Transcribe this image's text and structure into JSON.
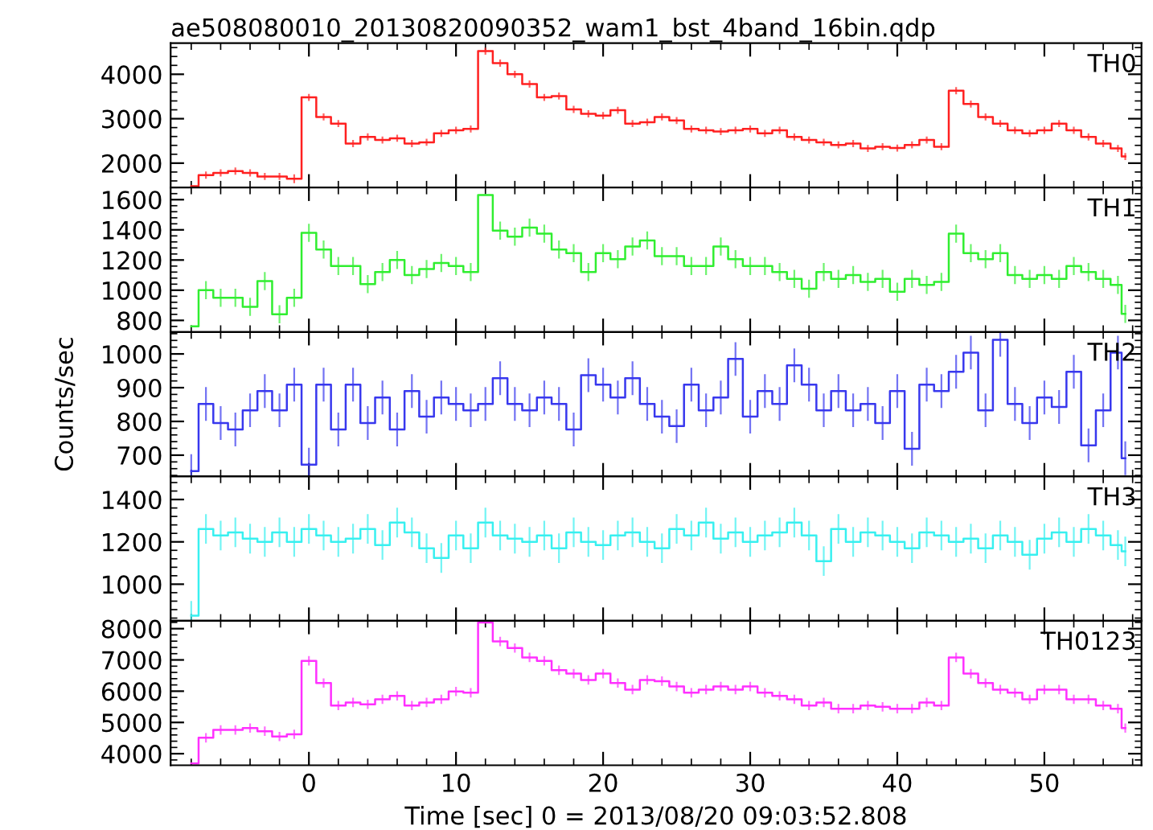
{
  "chart_data": [
    {
      "type": "step",
      "title": "ae508080010_20130820090352_wam1_bst_4band_16bin.qdp",
      "annotations": [
        "TH0"
      ],
      "tick_labels": "y",
      "x": [
        -8,
        -7,
        -6,
        -5,
        -4,
        -3,
        -2,
        -1,
        0,
        1,
        2,
        3,
        4,
        5,
        6,
        7,
        8,
        9,
        10,
        11,
        12,
        13,
        14,
        15,
        16,
        17,
        18,
        19,
        20,
        21,
        22,
        23,
        24,
        25,
        26,
        27,
        28,
        29,
        30,
        31,
        32,
        33,
        34,
        35,
        36,
        37,
        38,
        39,
        40,
        41,
        42,
        43,
        44,
        45,
        46,
        47,
        48,
        49,
        50,
        51,
        52,
        53,
        54,
        55,
        55.5
      ],
      "xlim": [
        -9.4,
        56.6
      ],
      "xticks": [
        0,
        10,
        20,
        30,
        40,
        50
      ],
      "ylim": [
        1450,
        4700
      ],
      "yticks": [
        2000,
        3000,
        4000
      ],
      "series": [
        {
          "color": "#ff2020",
          "values": [
            1480,
            1730,
            1780,
            1820,
            1780,
            1700,
            1700,
            1650,
            3480,
            3040,
            2890,
            2440,
            2590,
            2520,
            2560,
            2440,
            2470,
            2670,
            2740,
            2770,
            4520,
            4250,
            4000,
            3780,
            3480,
            3510,
            3210,
            3110,
            3070,
            3190,
            2890,
            2920,
            3040,
            2960,
            2770,
            2740,
            2710,
            2740,
            2770,
            2670,
            2740,
            2590,
            2520,
            2470,
            2410,
            2440,
            2330,
            2370,
            2340,
            2410,
            2520,
            2370,
            3630,
            3330,
            3040,
            2890,
            2740,
            2670,
            2740,
            2890,
            2740,
            2590,
            2440,
            2330,
            2150
          ],
          "errors": [
            null,
            80,
            80,
            80,
            80,
            80,
            80,
            100,
            80,
            80,
            80,
            80,
            80,
            80,
            80,
            80,
            80,
            80,
            80,
            80,
            80,
            80,
            80,
            80,
            80,
            80,
            80,
            80,
            80,
            80,
            80,
            80,
            80,
            80,
            80,
            80,
            80,
            80,
            80,
            80,
            80,
            80,
            80,
            80,
            80,
            80,
            80,
            80,
            80,
            80,
            80,
            80,
            80,
            80,
            80,
            80,
            80,
            80,
            80,
            80,
            80,
            80,
            80,
            80,
            80
          ]
        }
      ]
    },
    {
      "type": "step",
      "annotations": [
        "TH1"
      ],
      "tick_labels": "y",
      "x": [
        -8,
        -7,
        -6,
        -5,
        -4,
        -3,
        -2,
        -1,
        0,
        1,
        2,
        3,
        4,
        5,
        6,
        7,
        8,
        9,
        10,
        11,
        12,
        13,
        14,
        15,
        16,
        17,
        18,
        19,
        20,
        21,
        22,
        23,
        24,
        25,
        26,
        27,
        28,
        29,
        30,
        31,
        32,
        33,
        34,
        35,
        36,
        37,
        38,
        39,
        40,
        41,
        42,
        43,
        44,
        45,
        46,
        47,
        48,
        49,
        50,
        51,
        52,
        53,
        54,
        55,
        55.5
      ],
      "xlim": [
        -9.4,
        56.6
      ],
      "xticks": [
        0,
        10,
        20,
        30,
        40,
        50
      ],
      "ylim": [
        723,
        1680
      ],
      "yticks": [
        800,
        1000,
        1200,
        1400,
        1600
      ],
      "series": [
        {
          "color": "#30ee30",
          "values": [
            760,
            1000,
            950,
            950,
            890,
            1060,
            840,
            950,
            1380,
            1270,
            1160,
            1160,
            1040,
            1120,
            1200,
            1100,
            1140,
            1180,
            1160,
            1120,
            1630,
            1395,
            1355,
            1415,
            1375,
            1270,
            1245,
            1120,
            1245,
            1205,
            1290,
            1330,
            1225,
            1225,
            1160,
            1160,
            1290,
            1205,
            1160,
            1160,
            1120,
            1075,
            1010,
            1120,
            1075,
            1100,
            1055,
            1075,
            990,
            1075,
            1035,
            1055,
            1375,
            1245,
            1205,
            1245,
            1100,
            1075,
            1100,
            1075,
            1160,
            1120,
            1075,
            1035,
            843
          ],
          "errors": [
            null,
            60,
            60,
            60,
            60,
            60,
            60,
            60,
            60,
            60,
            60,
            60,
            60,
            60,
            60,
            60,
            60,
            60,
            60,
            60,
            null,
            60,
            60,
            60,
            60,
            60,
            60,
            60,
            60,
            60,
            60,
            60,
            60,
            60,
            60,
            60,
            60,
            60,
            60,
            60,
            60,
            60,
            60,
            60,
            60,
            60,
            60,
            60,
            60,
            60,
            60,
            60,
            60,
            60,
            60,
            60,
            60,
            60,
            60,
            60,
            60,
            60,
            60,
            60,
            60
          ]
        }
      ]
    },
    {
      "type": "step",
      "annotations": [
        "TH2"
      ],
      "ylabel": "Counts/sec",
      "tick_labels": "y",
      "x": [
        -8,
        -7,
        -6,
        -5,
        -4,
        -3,
        -2,
        -1,
        0,
        1,
        2,
        3,
        4,
        5,
        6,
        7,
        8,
        9,
        10,
        11,
        12,
        13,
        14,
        15,
        16,
        17,
        18,
        19,
        20,
        21,
        22,
        23,
        24,
        25,
        26,
        27,
        28,
        29,
        30,
        31,
        32,
        33,
        34,
        35,
        36,
        37,
        38,
        39,
        40,
        41,
        42,
        43,
        44,
        45,
        46,
        47,
        48,
        49,
        50,
        51,
        52,
        53,
        54,
        55,
        55.5
      ],
      "xlim": [
        -9.4,
        56.6
      ],
      "xticks": [
        0,
        10,
        20,
        30,
        40,
        50
      ],
      "ylim": [
        637,
        1065
      ],
      "yticks": [
        700,
        800,
        900,
        1000
      ],
      "series": [
        {
          "color": "#3838ee",
          "values": [
            653,
            852,
            795,
            776,
            833,
            890,
            833,
            909,
            672,
            909,
            776,
            909,
            795,
            871,
            776,
            890,
            814,
            871,
            852,
            833,
            852,
            928,
            852,
            833,
            871,
            852,
            776,
            937,
            909,
            871,
            928,
            852,
            814,
            786,
            909,
            833,
            871,
            985,
            814,
            890,
            852,
            966,
            909,
            833,
            890,
            833,
            852,
            795,
            890,
            719,
            909,
            890,
            947,
            1004,
            833,
            1042,
            852,
            795,
            871,
            843,
            947,
            729,
            833,
            1004,
            691
          ],
          "errors": [
            50,
            50,
            50,
            50,
            50,
            50,
            50,
            50,
            50,
            50,
            50,
            50,
            50,
            50,
            50,
            50,
            50,
            50,
            50,
            50,
            50,
            50,
            50,
            50,
            50,
            50,
            50,
            50,
            50,
            50,
            50,
            50,
            50,
            50,
            50,
            50,
            50,
            50,
            50,
            50,
            50,
            50,
            50,
            50,
            50,
            50,
            50,
            50,
            50,
            50,
            50,
            50,
            50,
            50,
            50,
            50,
            50,
            50,
            50,
            50,
            50,
            50,
            50,
            50,
            50
          ]
        }
      ]
    },
    {
      "type": "step",
      "annotations": [
        "TH3"
      ],
      "tick_labels": "y",
      "x": [
        -8,
        -7,
        -6,
        -5,
        -4,
        -3,
        -2,
        -1,
        0,
        1,
        2,
        3,
        4,
        5,
        6,
        7,
        8,
        9,
        10,
        11,
        12,
        13,
        14,
        15,
        16,
        17,
        18,
        19,
        20,
        21,
        22,
        23,
        24,
        25,
        26,
        27,
        28,
        29,
        30,
        31,
        32,
        33,
        34,
        35,
        36,
        37,
        38,
        39,
        40,
        41,
        42,
        43,
        44,
        45,
        46,
        47,
        48,
        49,
        50,
        51,
        52,
        53,
        54,
        55,
        55.5
      ],
      "xlim": [
        -9.4,
        56.6
      ],
      "xticks": [
        0,
        10,
        20,
        30,
        40,
        50
      ],
      "ylim": [
        827,
        1509
      ],
      "yticks": [
        1000,
        1200,
        1400
      ],
      "series": [
        {
          "color": "#38f0f0",
          "values": [
            851,
            1261,
            1230,
            1245,
            1215,
            1200,
            1245,
            1200,
            1261,
            1230,
            1200,
            1215,
            1261,
            1185,
            1291,
            1245,
            1170,
            1124,
            1230,
            1170,
            1291,
            1230,
            1215,
            1200,
            1230,
            1170,
            1245,
            1200,
            1185,
            1230,
            1245,
            1200,
            1170,
            1261,
            1230,
            1291,
            1215,
            1245,
            1200,
            1230,
            1245,
            1291,
            1230,
            1109,
            1261,
            1200,
            1245,
            1230,
            1200,
            1170,
            1245,
            1230,
            1200,
            1215,
            1170,
            1230,
            1200,
            1139,
            1215,
            1245,
            1200,
            1261,
            1230,
            1185,
            1155
          ],
          "errors": [
            70,
            70,
            70,
            70,
            70,
            70,
            70,
            70,
            70,
            70,
            70,
            70,
            70,
            70,
            70,
            70,
            70,
            70,
            70,
            70,
            70,
            70,
            70,
            70,
            70,
            70,
            70,
            70,
            70,
            70,
            70,
            70,
            70,
            70,
            70,
            70,
            70,
            70,
            70,
            70,
            70,
            70,
            70,
            70,
            70,
            70,
            70,
            70,
            70,
            70,
            70,
            70,
            70,
            70,
            70,
            70,
            70,
            70,
            70,
            70,
            70,
            70,
            70,
            70,
            70
          ]
        }
      ]
    },
    {
      "type": "step",
      "annotations": [
        "TH0123"
      ],
      "xlabel": "Time [sec] 0 = 2013/08/20 09:03:52.808",
      "x": [
        -8,
        -7,
        -6,
        -5,
        -4,
        -3,
        -2,
        -1,
        0,
        1,
        2,
        3,
        4,
        5,
        6,
        7,
        8,
        9,
        10,
        11,
        12,
        13,
        14,
        15,
        16,
        17,
        18,
        19,
        20,
        21,
        22,
        23,
        24,
        25,
        26,
        27,
        28,
        29,
        30,
        31,
        32,
        33,
        34,
        35,
        36,
        37,
        38,
        39,
        40,
        41,
        42,
        43,
        44,
        45,
        46,
        47,
        48,
        49,
        50,
        51,
        52,
        53,
        54,
        55,
        55.5
      ],
      "xlim": [
        -9.4,
        56.6
      ],
      "xticks": [
        0,
        10,
        20,
        30,
        40,
        50
      ],
      "ylim": [
        3630,
        8250
      ],
      "yticks": [
        4000,
        5000,
        6000,
        7000,
        8000
      ],
      "series": [
        {
          "color": "#ff30ff",
          "values": [
            3690,
            4510,
            4760,
            4760,
            4820,
            4720,
            4550,
            4620,
            6970,
            6260,
            5540,
            5640,
            5580,
            5740,
            5850,
            5540,
            5640,
            5740,
            5990,
            5950,
            8200,
            7590,
            7380,
            7080,
            6970,
            6670,
            6560,
            6360,
            6560,
            6260,
            6050,
            6360,
            6320,
            6150,
            5950,
            6050,
            6150,
            6050,
            6150,
            5950,
            5850,
            5740,
            5540,
            5640,
            5440,
            5440,
            5540,
            5500,
            5440,
            5440,
            5640,
            5540,
            7080,
            6560,
            6260,
            6050,
            5950,
            5740,
            6050,
            6050,
            5740,
            5740,
            5540,
            5440,
            4820
          ],
          "errors": [
            null,
            150,
            150,
            150,
            150,
            150,
            150,
            150,
            150,
            150,
            150,
            150,
            150,
            150,
            150,
            150,
            150,
            150,
            150,
            150,
            null,
            150,
            150,
            150,
            150,
            150,
            150,
            150,
            150,
            150,
            150,
            150,
            150,
            150,
            150,
            150,
            150,
            150,
            150,
            150,
            150,
            150,
            150,
            150,
            150,
            150,
            150,
            150,
            150,
            150,
            150,
            150,
            150,
            150,
            150,
            150,
            150,
            150,
            150,
            150,
            150,
            150,
            150,
            150,
            150
          ]
        }
      ]
    }
  ]
}
